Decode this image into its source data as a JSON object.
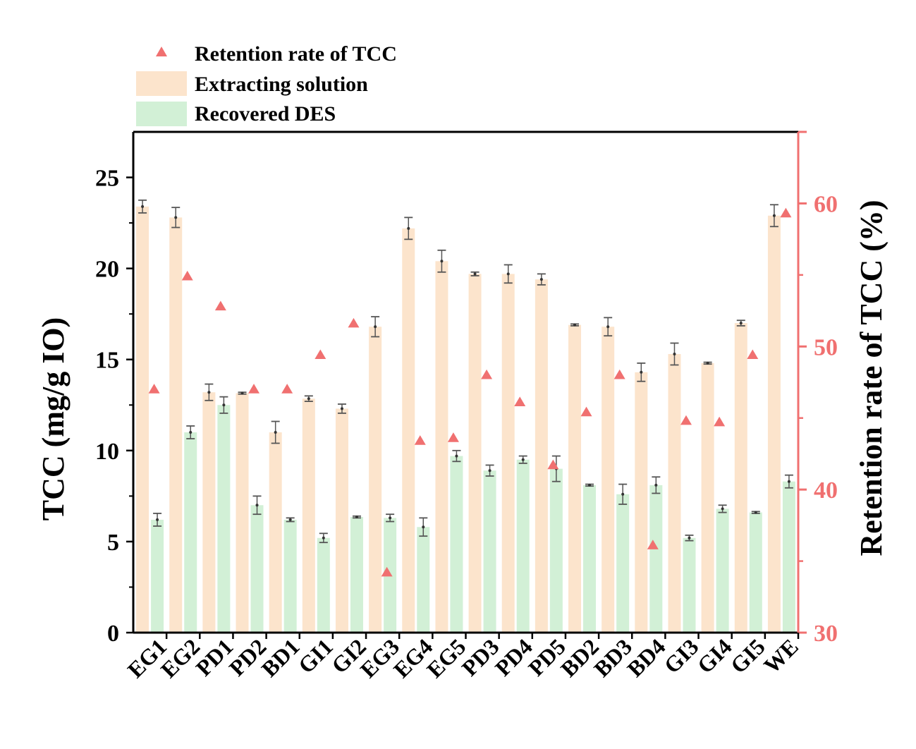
{
  "chart_data": {
    "type": "bar",
    "categories": [
      "EG1",
      "EG2",
      "PD1",
      "PD2",
      "BD1",
      "GI1",
      "GI2",
      "EG3",
      "EG4",
      "EG5",
      "PD3",
      "PD4",
      "PD5",
      "BD2",
      "BD3",
      "BD4",
      "GI3",
      "GI4",
      "GI5",
      "WE"
    ],
    "series": [
      {
        "name": "Extracting solution",
        "axis": "left",
        "color": "#FCE4CC",
        "values": [
          23.4,
          22.8,
          13.2,
          13.15,
          11.0,
          12.85,
          12.3,
          16.8,
          22.2,
          20.4,
          19.7,
          19.7,
          19.4,
          16.9,
          16.8,
          14.3,
          15.3,
          14.8,
          17.0,
          22.9
        ],
        "errors": [
          0.35,
          0.55,
          0.45,
          0.05,
          0.6,
          0.15,
          0.25,
          0.55,
          0.6,
          0.6,
          0.1,
          0.5,
          0.3,
          0.05,
          0.5,
          0.5,
          0.6,
          0.05,
          0.15,
          0.6
        ]
      },
      {
        "name": "Recovered DES",
        "axis": "left",
        "color": "#D2F0D6",
        "values": [
          6.2,
          11.0,
          12.5,
          7.0,
          6.2,
          5.2,
          6.35,
          6.3,
          5.8,
          9.7,
          8.9,
          9.5,
          9.0,
          8.1,
          7.6,
          8.1,
          5.2,
          6.8,
          6.6,
          8.3
        ],
        "errors": [
          0.35,
          0.35,
          0.45,
          0.5,
          0.1,
          0.25,
          0.05,
          0.2,
          0.5,
          0.3,
          0.3,
          0.2,
          0.7,
          0.05,
          0.55,
          0.45,
          0.15,
          0.2,
          0.05,
          0.35
        ]
      },
      {
        "name": "Retention rate of TCC",
        "axis": "right",
        "type": "scatter",
        "marker": "triangle",
        "color": "#F07070",
        "values": [
          47.0,
          54.9,
          52.8,
          47.0,
          47.0,
          49.4,
          51.6,
          34.2,
          43.4,
          43.6,
          48.0,
          46.1,
          41.7,
          45.4,
          48.0,
          36.1,
          44.8,
          44.7,
          49.4,
          59.3
        ]
      }
    ],
    "ylabel": "TCC (mg/g IO)",
    "ylim": [
      0,
      27.5
    ],
    "yticks": [
      0,
      5,
      10,
      15,
      20,
      25
    ],
    "y2label": "Retention rate of TCC (%)",
    "y2lim": [
      30,
      65
    ],
    "y2ticks": [
      30,
      40,
      50,
      60
    ],
    "axis_colors": {
      "left": "#000000",
      "right": "#F07070"
    },
    "legend": {
      "placement": "top-left",
      "entries": [
        "Retention rate of TCC",
        "Extracting solution",
        "Recovered DES"
      ]
    }
  }
}
